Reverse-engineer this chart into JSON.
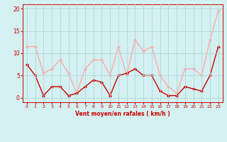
{
  "x": [
    0,
    1,
    2,
    3,
    4,
    5,
    6,
    7,
    8,
    9,
    10,
    11,
    12,
    13,
    14,
    15,
    16,
    17,
    18,
    19,
    20,
    21,
    22,
    23
  ],
  "wind_avg": [
    7.5,
    5.0,
    0.5,
    2.5,
    2.5,
    0.5,
    1.0,
    2.5,
    4.0,
    3.5,
    0.5,
    5.0,
    5.5,
    6.5,
    5.0,
    5.0,
    1.5,
    0.5,
    0.5,
    2.5,
    2.0,
    1.5,
    5.0,
    11.5
  ],
  "wind_gust": [
    11.5,
    11.5,
    5.5,
    6.5,
    8.5,
    5.5,
    1.0,
    6.5,
    8.5,
    8.5,
    5.0,
    11.5,
    5.0,
    13.0,
    10.5,
    11.5,
    5.0,
    2.5,
    1.0,
    6.5,
    6.5,
    5.0,
    13.0,
    19.5
  ],
  "color_avg": "#cc0000",
  "color_gust": "#ffaaaa",
  "bg_color": "#d4f0f0",
  "grid_color": "#b0d8d8",
  "xlabel": "Vent moyen/en rafales ( km/h )",
  "ylim": [
    -1,
    21
  ],
  "yticks": [
    0,
    5,
    10,
    15,
    20
  ],
  "xlim": [
    -0.5,
    23.5
  ],
  "marker": "D",
  "marker_size": 2,
  "line_width": 1.0,
  "xlabel_color": "#cc0000",
  "tick_color": "#cc0000",
  "axis_color": "#cc0000"
}
